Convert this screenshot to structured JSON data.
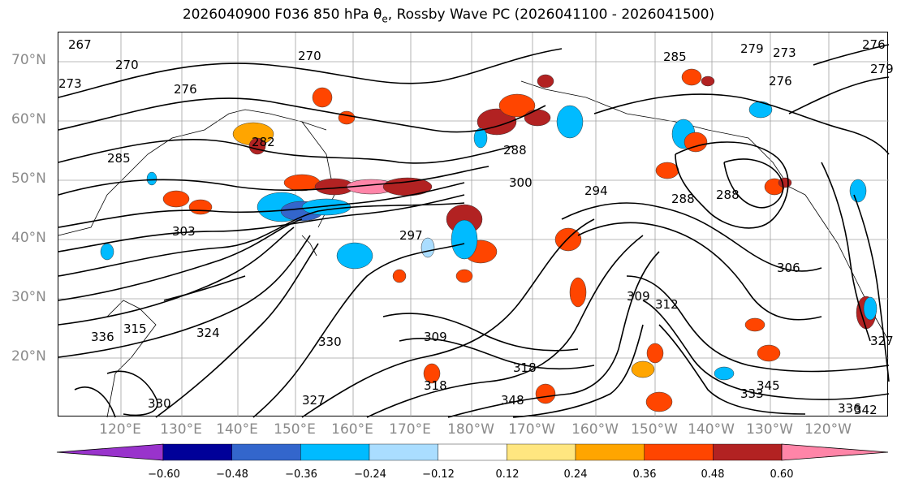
{
  "title": {
    "prefix": "2026040900 F036 850 hPa θ",
    "sub": "e",
    "suffix": ", Rossby Wave PC (2026041100 - 2026041500)"
  },
  "latitude_labels": [
    "70°N",
    "60°N",
    "50°N",
    "40°N",
    "30°N",
    "20°N"
  ],
  "longitude_labels": [
    "120°E",
    "130°E",
    "140°E",
    "150°E",
    "160°E",
    "170°E",
    "180°W",
    "170°W",
    "160°W",
    "150°W",
    "140°W",
    "130°W",
    "120°W"
  ],
  "contour_labels": [
    "267",
    "270",
    "273",
    "276",
    "270",
    "285",
    "285",
    "276",
    "279",
    "282",
    "288",
    "300",
    "294",
    "288",
    "288",
    "273",
    "276",
    "279",
    "306",
    "303",
    "297",
    "309",
    "312",
    "309",
    "318",
    "318",
    "324",
    "333",
    "336",
    "330",
    "327",
    "348",
    "345",
    "336",
    "342",
    "327",
    "315",
    "330"
  ],
  "colorbar": {
    "colors": [
      "#9933cc",
      "#000099",
      "#3366cc",
      "#00bbff",
      "#aaddff",
      "#ffffff",
      "#ffe680",
      "#ffa500",
      "#ff4500",
      "#b22222",
      "#ff85a8"
    ],
    "tick_labels": [
      "−0.60",
      "−0.48",
      "−0.36",
      "−0.24",
      "−0.12",
      "0.12",
      "0.24",
      "0.36",
      "0.48",
      "0.60"
    ]
  }
}
